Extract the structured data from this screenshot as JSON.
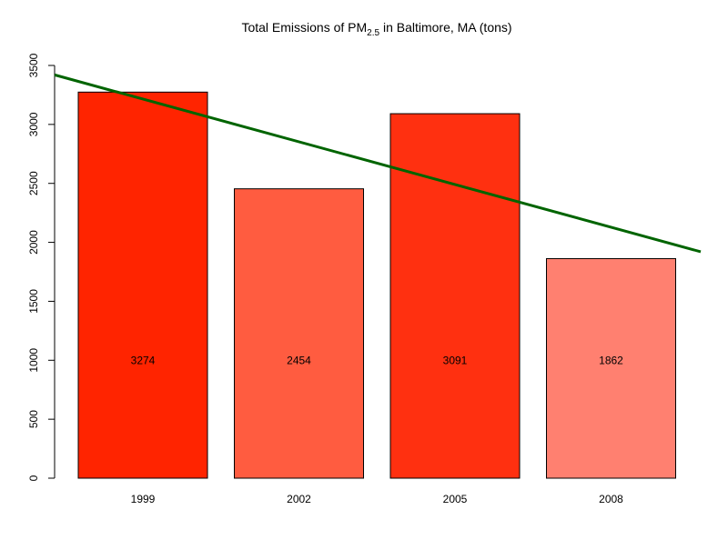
{
  "chart_data": {
    "type": "bar",
    "title_main": "Total Emissions of PM",
    "title_sub": "2.5",
    "title_rest": " in Baltimore, MA (tons)",
    "categories": [
      "1999",
      "2002",
      "2005",
      "2008"
    ],
    "values": [
      3274,
      2454,
      3091,
      1862
    ],
    "value_labels": [
      "3274",
      "2454",
      "3091",
      "1862"
    ],
    "bar_colors": [
      "#FF2400",
      "#FF5C40",
      "#FF3010",
      "#FF8070"
    ],
    "ylim": [
      0,
      3500
    ],
    "yticks": [
      0,
      500,
      1000,
      1500,
      2000,
      2500,
      3000,
      3500
    ],
    "ytick_labels": [
      "0",
      "500",
      "1000",
      "1500",
      "2000",
      "2500",
      "3000",
      "3500"
    ],
    "value_label_y": 1000,
    "trendline": {
      "start_value": 3420,
      "end_value": 1920,
      "color": "#006400"
    },
    "grid": false,
    "legend": "none"
  }
}
